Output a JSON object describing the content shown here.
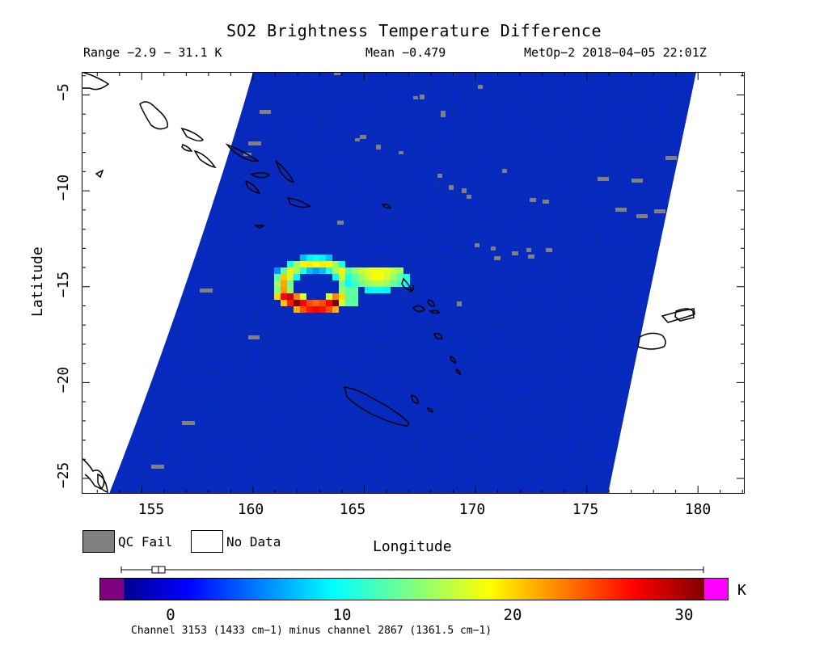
{
  "title": "SO2 Brightness Temperature Difference",
  "header": {
    "range": "Range −2.9 − 31.1 K",
    "mean": "Mean −0.479",
    "satellite": "MetOp−2 2018−04−05 22:01Z"
  },
  "axes": {
    "xlabel": "Longitude",
    "ylabel": "Latitude",
    "xticks": [
      "155",
      "160",
      "165",
      "170",
      "175",
      "180"
    ],
    "yticks": [
      "−5",
      "−10",
      "−15",
      "−20",
      "−25"
    ],
    "xticks_value": [
      155,
      160,
      165,
      170,
      175,
      180
    ],
    "yticks_value": [
      -5,
      -10,
      -15,
      -20,
      -25
    ],
    "xlim": [
      152.3,
      182.1
    ],
    "ylim": [
      -25.8,
      -3.8
    ]
  },
  "legend": {
    "qc_fail": "QC Fail",
    "no_data": "No Data",
    "qc_color": "#808080",
    "no_data_color": "#ffffff"
  },
  "colorbar": {
    "ticks": [
      "0",
      "10",
      "20",
      "30"
    ],
    "tick_values": [
      0,
      10,
      20,
      30
    ],
    "range": [
      -2.9,
      31.1
    ],
    "unit": "K",
    "under_color": "#7f007f",
    "over_color": "#ff00ff",
    "caption": "Channel 3153 (1433 cm−1) minus channel 2867 (1361.5 cm−1)"
  },
  "swath": {
    "background_value": -0.5,
    "plume_lat_range": [
      -16.7,
      -14.3
    ],
    "plume_lon_range": [
      161.1,
      167.2
    ]
  }
}
